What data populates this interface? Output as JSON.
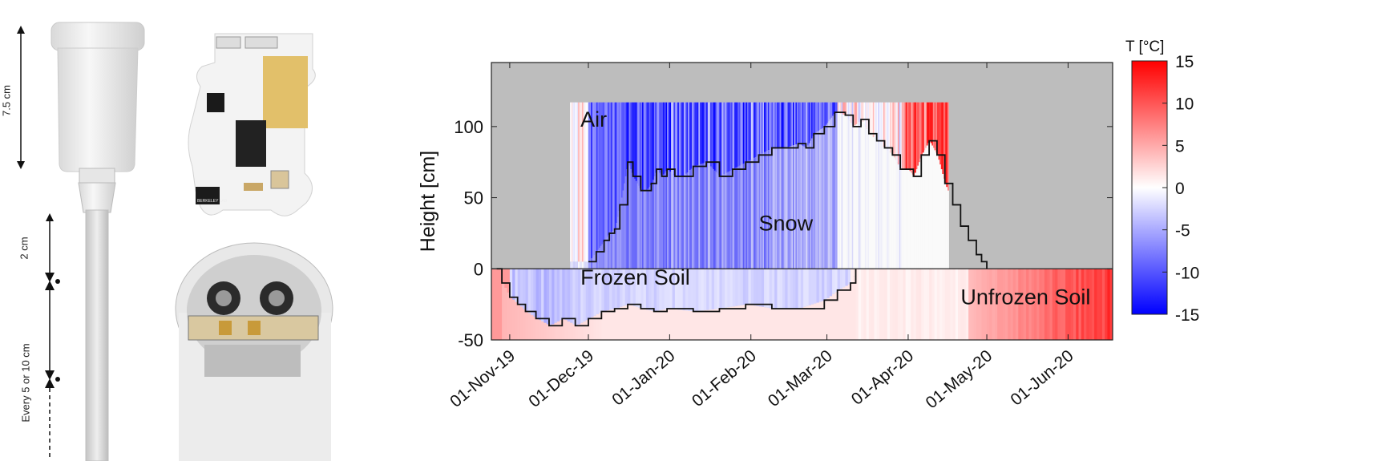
{
  "annotations": {
    "dim_top": "7.5 cm",
    "dim_mid": "2 cm",
    "dim_bottom": "Every 5 or 10 cm",
    "board_logo": "BERKELEY LAB"
  },
  "chart_data": {
    "type": "heatmap",
    "ylabel": "Height [cm]",
    "y_ticks": [
      "100",
      "50",
      "0",
      "-50"
    ],
    "y_tick_values": [
      100,
      50,
      0,
      -50
    ],
    "ylim": [
      -50,
      145
    ],
    "x_ticks": [
      "01-Nov-19",
      "01-Dec-19",
      "01-Jan-20",
      "01-Feb-20",
      "01-Mar-20",
      "01-Apr-20",
      "01-May-20",
      "01-Jun-20"
    ],
    "x_tick_days": [
      0,
      30,
      61,
      92,
      121,
      152,
      182,
      213
    ],
    "xlim_days": [
      -7,
      230
    ],
    "region_labels": [
      {
        "text": "Air",
        "day": 27,
        "height": 100
      },
      {
        "text": "Snow",
        "day": 95,
        "height": 27
      },
      {
        "text": "Frozen Soil",
        "day": 27,
        "height": -11
      },
      {
        "text": "Unfrozen Soil",
        "day": 172,
        "height": -25
      }
    ],
    "colorbar": {
      "title": "T [°C]",
      "ticks": [
        "15",
        "10",
        "5",
        "0",
        "-5",
        "-10",
        "-15"
      ],
      "tick_values": [
        15,
        10,
        5,
        0,
        -5,
        -10,
        -15
      ],
      "range": [
        -15,
        15
      ],
      "colors": {
        "min": "#0000ff",
        "mid": "#ffffff",
        "max": "#ff0000",
        "missing": "#bdbdbd"
      }
    },
    "snow_depth_line": {
      "days": [
        30,
        33,
        36,
        38,
        40,
        42,
        45,
        47,
        50,
        52,
        54,
        56,
        58,
        60,
        63,
        66,
        70,
        75,
        80,
        85,
        90,
        95,
        100,
        105,
        110,
        113,
        116,
        120,
        124,
        128,
        131,
        134,
        137,
        140,
        143,
        146,
        149,
        152,
        154,
        157,
        160,
        163,
        166,
        169,
        172,
        175,
        178,
        180,
        182
      ],
      "heights": [
        5,
        12,
        20,
        25,
        28,
        45,
        75,
        65,
        55,
        55,
        60,
        70,
        65,
        70,
        65,
        65,
        72,
        75,
        65,
        70,
        75,
        80,
        85,
        85,
        88,
        85,
        95,
        100,
        110,
        108,
        100,
        105,
        95,
        90,
        85,
        80,
        70,
        70,
        65,
        80,
        90,
        80,
        60,
        45,
        30,
        20,
        10,
        5,
        0
      ]
    },
    "frozen_soil_line": {
      "days": [
        -5,
        -3,
        0,
        3,
        6,
        10,
        15,
        20,
        25,
        30,
        35,
        40,
        45,
        50,
        55,
        60,
        70,
        80,
        90,
        100,
        110,
        120,
        125,
        130,
        132
      ],
      "heights": [
        0,
        -10,
        -20,
        -25,
        -30,
        -35,
        -40,
        -35,
        -40,
        -35,
        -30,
        -28,
        -25,
        -28,
        -30,
        -28,
        -30,
        -28,
        -25,
        -28,
        -28,
        -22,
        -15,
        -10,
        0
      ]
    }
  }
}
